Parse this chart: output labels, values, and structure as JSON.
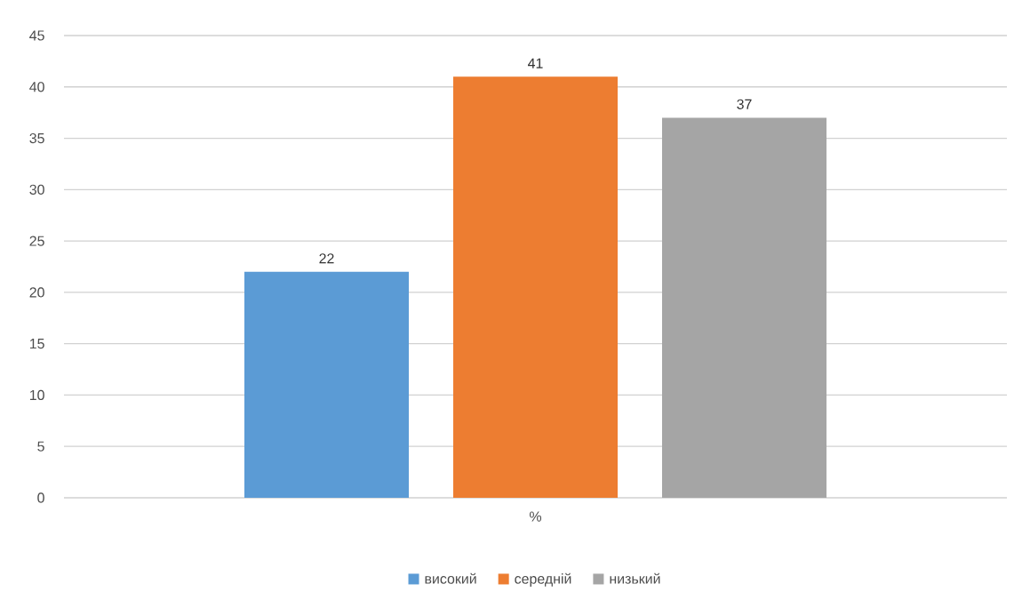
{
  "chart_data": {
    "type": "bar",
    "categories": [
      "%"
    ],
    "series": [
      {
        "name": "високий",
        "color": "#5b9bd5",
        "values": [
          22
        ]
      },
      {
        "name": "середній",
        "color": "#ed7d31",
        "values": [
          41
        ]
      },
      {
        "name": "низький",
        "color": "#a5a5a5",
        "values": [
          37
        ]
      }
    ],
    "ylim": [
      0,
      45
    ],
    "yticks": [
      0,
      5,
      10,
      15,
      20,
      25,
      30,
      35,
      40,
      45
    ],
    "grid": "y",
    "legend": "bottom",
    "data_labels": true
  }
}
